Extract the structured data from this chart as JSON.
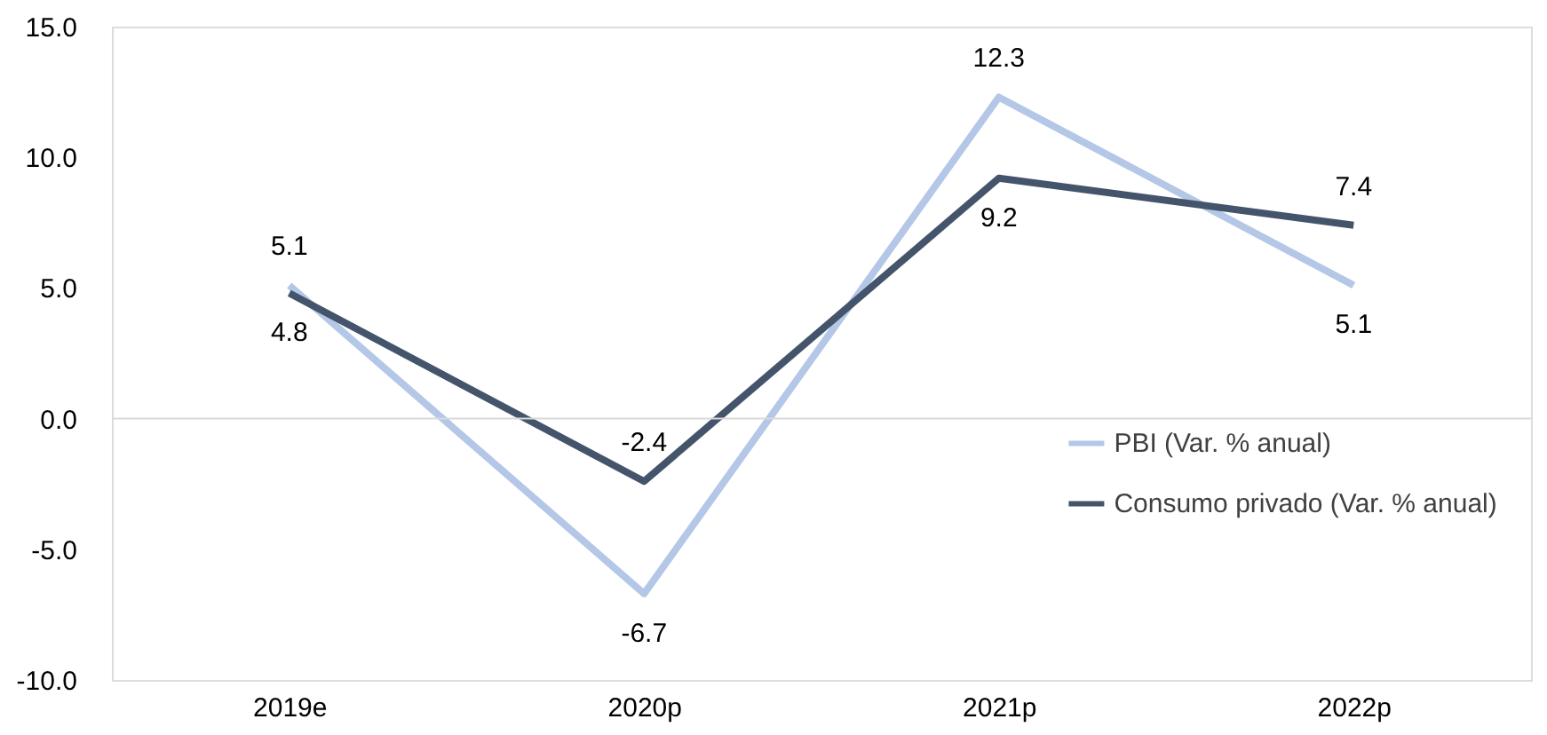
{
  "chart_data": {
    "type": "line",
    "categories": [
      "2019e",
      "2020p",
      "2021p",
      "2022p"
    ],
    "series": [
      {
        "name": "PBI (Var. % anual)",
        "color": "#b4c7e7",
        "values": [
          5.1,
          -6.7,
          12.3,
          5.1
        ]
      },
      {
        "name": "Consumo privado (Var. % anual)",
        "color": "#44546a",
        "values": [
          4.8,
          -2.4,
          9.2,
          7.4
        ]
      }
    ],
    "ylim": [
      -10,
      15
    ],
    "yticks": [
      {
        "value": -10,
        "label": "-10.0"
      },
      {
        "value": -5,
        "label": "-5.0"
      },
      {
        "value": 0,
        "label": "0.0"
      },
      {
        "value": 5,
        "label": "5.0"
      },
      {
        "value": 10,
        "label": "10.0"
      },
      {
        "value": 15,
        "label": "15.0"
      }
    ],
    "ref_lines": [
      {
        "axis": "y",
        "value": 0,
        "color": "#d9d9d9"
      }
    ],
    "data_labels": true,
    "grid": false,
    "legend": "bottom right",
    "marker": "none",
    "line_style": "solid"
  }
}
